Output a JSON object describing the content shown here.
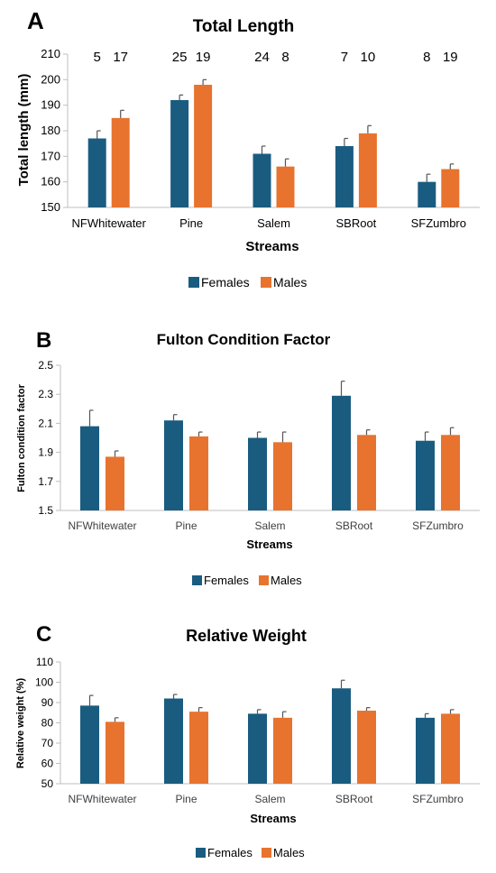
{
  "colors": {
    "females": "#1a5c80",
    "males": "#e8732e",
    "errorbar": "#555555",
    "axis": "#bfbfbf"
  },
  "chart_data": [
    {
      "panel": "A",
      "type": "bar",
      "title": "Total Length",
      "xlabel": "Streams",
      "ylabel": "Total length (mm)",
      "categories": [
        "NFWhitewater",
        "Pine",
        "Salem",
        "SBRoot",
        "SFZumbro"
      ],
      "ylim": [
        150,
        210
      ],
      "yticks": [
        "150",
        "160",
        "170",
        "180",
        "190",
        "200",
        "210"
      ],
      "series": [
        {
          "name": "Females",
          "values": [
            177,
            192,
            171,
            174,
            160
          ],
          "errors": [
            3,
            2,
            3,
            3,
            3
          ]
        },
        {
          "name": "Males",
          "values": [
            185,
            198,
            166,
            179,
            165
          ],
          "errors": [
            3,
            2,
            3,
            3,
            2
          ]
        }
      ],
      "sample_sizes": [
        [
          "5",
          "17"
        ],
        [
          "25",
          "19"
        ],
        [
          "24",
          "8"
        ],
        [
          "7",
          "10"
        ],
        [
          "8",
          "19"
        ]
      ],
      "legend": "bottom-center",
      "grid": false
    },
    {
      "panel": "B",
      "type": "bar",
      "title": "Fulton Condition Factor",
      "xlabel": "Streams",
      "ylabel": "Fulton condition factor",
      "categories": [
        "NFWhitewater",
        "Pine",
        "Salem",
        "SBRoot",
        "SFZumbro"
      ],
      "ylim": [
        1.5,
        2.5
      ],
      "yticks": [
        "1.5",
        "1.7",
        "1.9",
        "2.1",
        "2.3",
        "2.5"
      ],
      "series": [
        {
          "name": "Females",
          "values": [
            2.08,
            2.12,
            2.0,
            2.29,
            1.98
          ],
          "errors": [
            0.11,
            0.04,
            0.04,
            0.1,
            0.06
          ]
        },
        {
          "name": "Males",
          "values": [
            1.87,
            2.01,
            1.97,
            2.02,
            2.02
          ],
          "errors": [
            0.04,
            0.03,
            0.07,
            0.035,
            0.05
          ]
        }
      ],
      "legend": "bottom-center",
      "grid": false
    },
    {
      "panel": "C",
      "type": "bar",
      "title": "Relative Weight",
      "xlabel": "Streams",
      "ylabel": "Relative weight (%)",
      "categories": [
        "NFWhitewater",
        "Pine",
        "Salem",
        "SBRoot",
        "SFZumbro"
      ],
      "ylim": [
        50,
        110
      ],
      "yticks": [
        "50",
        "60",
        "70",
        "80",
        "90",
        "100",
        "110"
      ],
      "series": [
        {
          "name": "Females",
          "values": [
            88.5,
            92,
            84.5,
            97,
            82.5
          ],
          "errors": [
            5,
            2,
            2,
            4,
            2
          ]
        },
        {
          "name": "Males",
          "values": [
            80.5,
            85.5,
            82.5,
            86,
            84.5
          ],
          "errors": [
            2,
            2,
            3,
            1.5,
            2
          ]
        }
      ],
      "legend": "bottom-center",
      "grid": false
    }
  ]
}
